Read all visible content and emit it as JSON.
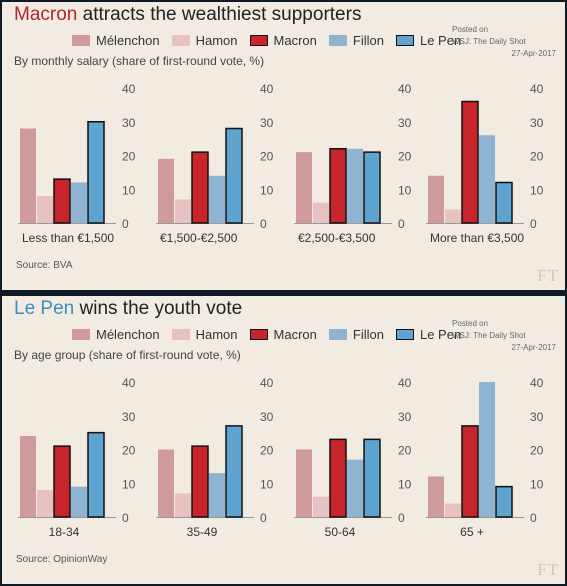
{
  "panels": [
    {
      "title_highlight": "Macron",
      "title_rest": " attracts the wealthiest supporters",
      "subtitle": "By monthly salary (share of first-round vote, %)",
      "source": "Source: BVA",
      "watermark": "FT",
      "posted": {
        "line1": "Posted on",
        "line2": "WSJ: The Daily Shot",
        "date": "27-Apr-2017"
      }
    },
    {
      "title_highlight": "Le Pen",
      "title_rest": " wins the youth vote",
      "subtitle": "By age group (share of first-round vote, %)",
      "source": "Source: OpinionWay",
      "watermark": "FT",
      "posted": {
        "line1": "Posted on",
        "line2": "WSJ: The Daily Shot",
        "date": "27-Apr-2017"
      }
    }
  ],
  "legend": [
    "Mélenchon",
    "Hamon",
    "Macron",
    "Fillon",
    "Le Pen"
  ],
  "colors": {
    "Mélenchon": "#d19a9a",
    "Hamon": "#e8c2c2",
    "Macron": "#c8242b",
    "Fillon": "#8fb4d1",
    "Le Pen": "#5fa3d0"
  },
  "chart_data": [
    {
      "type": "bar",
      "title": "Macron attracts the wealthiest supporters",
      "subtitle": "By monthly salary (share of first-round vote, %)",
      "categories": [
        "Less than €1,500",
        "€1,500-€2,500",
        "€2,500-€3,500",
        "More than €3,500"
      ],
      "series": [
        {
          "name": "Mélenchon",
          "values": [
            28,
            19,
            21,
            14
          ]
        },
        {
          "name": "Hamon",
          "values": [
            8,
            7,
            6,
            4
          ]
        },
        {
          "name": "Macron",
          "values": [
            13,
            21,
            22,
            36
          ]
        },
        {
          "name": "Fillon",
          "values": [
            12,
            14,
            22,
            26
          ]
        },
        {
          "name": "Le Pen",
          "values": [
            30,
            28,
            21,
            12
          ]
        }
      ],
      "ylim": [
        0,
        40
      ],
      "yticks": [
        0,
        10,
        20,
        30,
        40
      ],
      "grid": false,
      "legend_position": "top",
      "source": "Source: BVA"
    },
    {
      "type": "bar",
      "title": "Le Pen wins the youth vote",
      "subtitle": "By age group (share of first-round vote, %)",
      "categories": [
        "18-34",
        "35-49",
        "50-64",
        "65 +"
      ],
      "series": [
        {
          "name": "Mélenchon",
          "values": [
            24,
            20,
            20,
            12
          ]
        },
        {
          "name": "Hamon",
          "values": [
            8,
            7,
            6,
            4
          ]
        },
        {
          "name": "Macron",
          "values": [
            21,
            21,
            23,
            27
          ]
        },
        {
          "name": "Fillon",
          "values": [
            9,
            13,
            17,
            40
          ]
        },
        {
          "name": "Le Pen",
          "values": [
            25,
            27,
            23,
            9
          ]
        }
      ],
      "ylim": [
        0,
        40
      ],
      "yticks": [
        0,
        10,
        20,
        30,
        40
      ],
      "grid": false,
      "legend_position": "top",
      "source": "Source: OpinionWay"
    }
  ]
}
